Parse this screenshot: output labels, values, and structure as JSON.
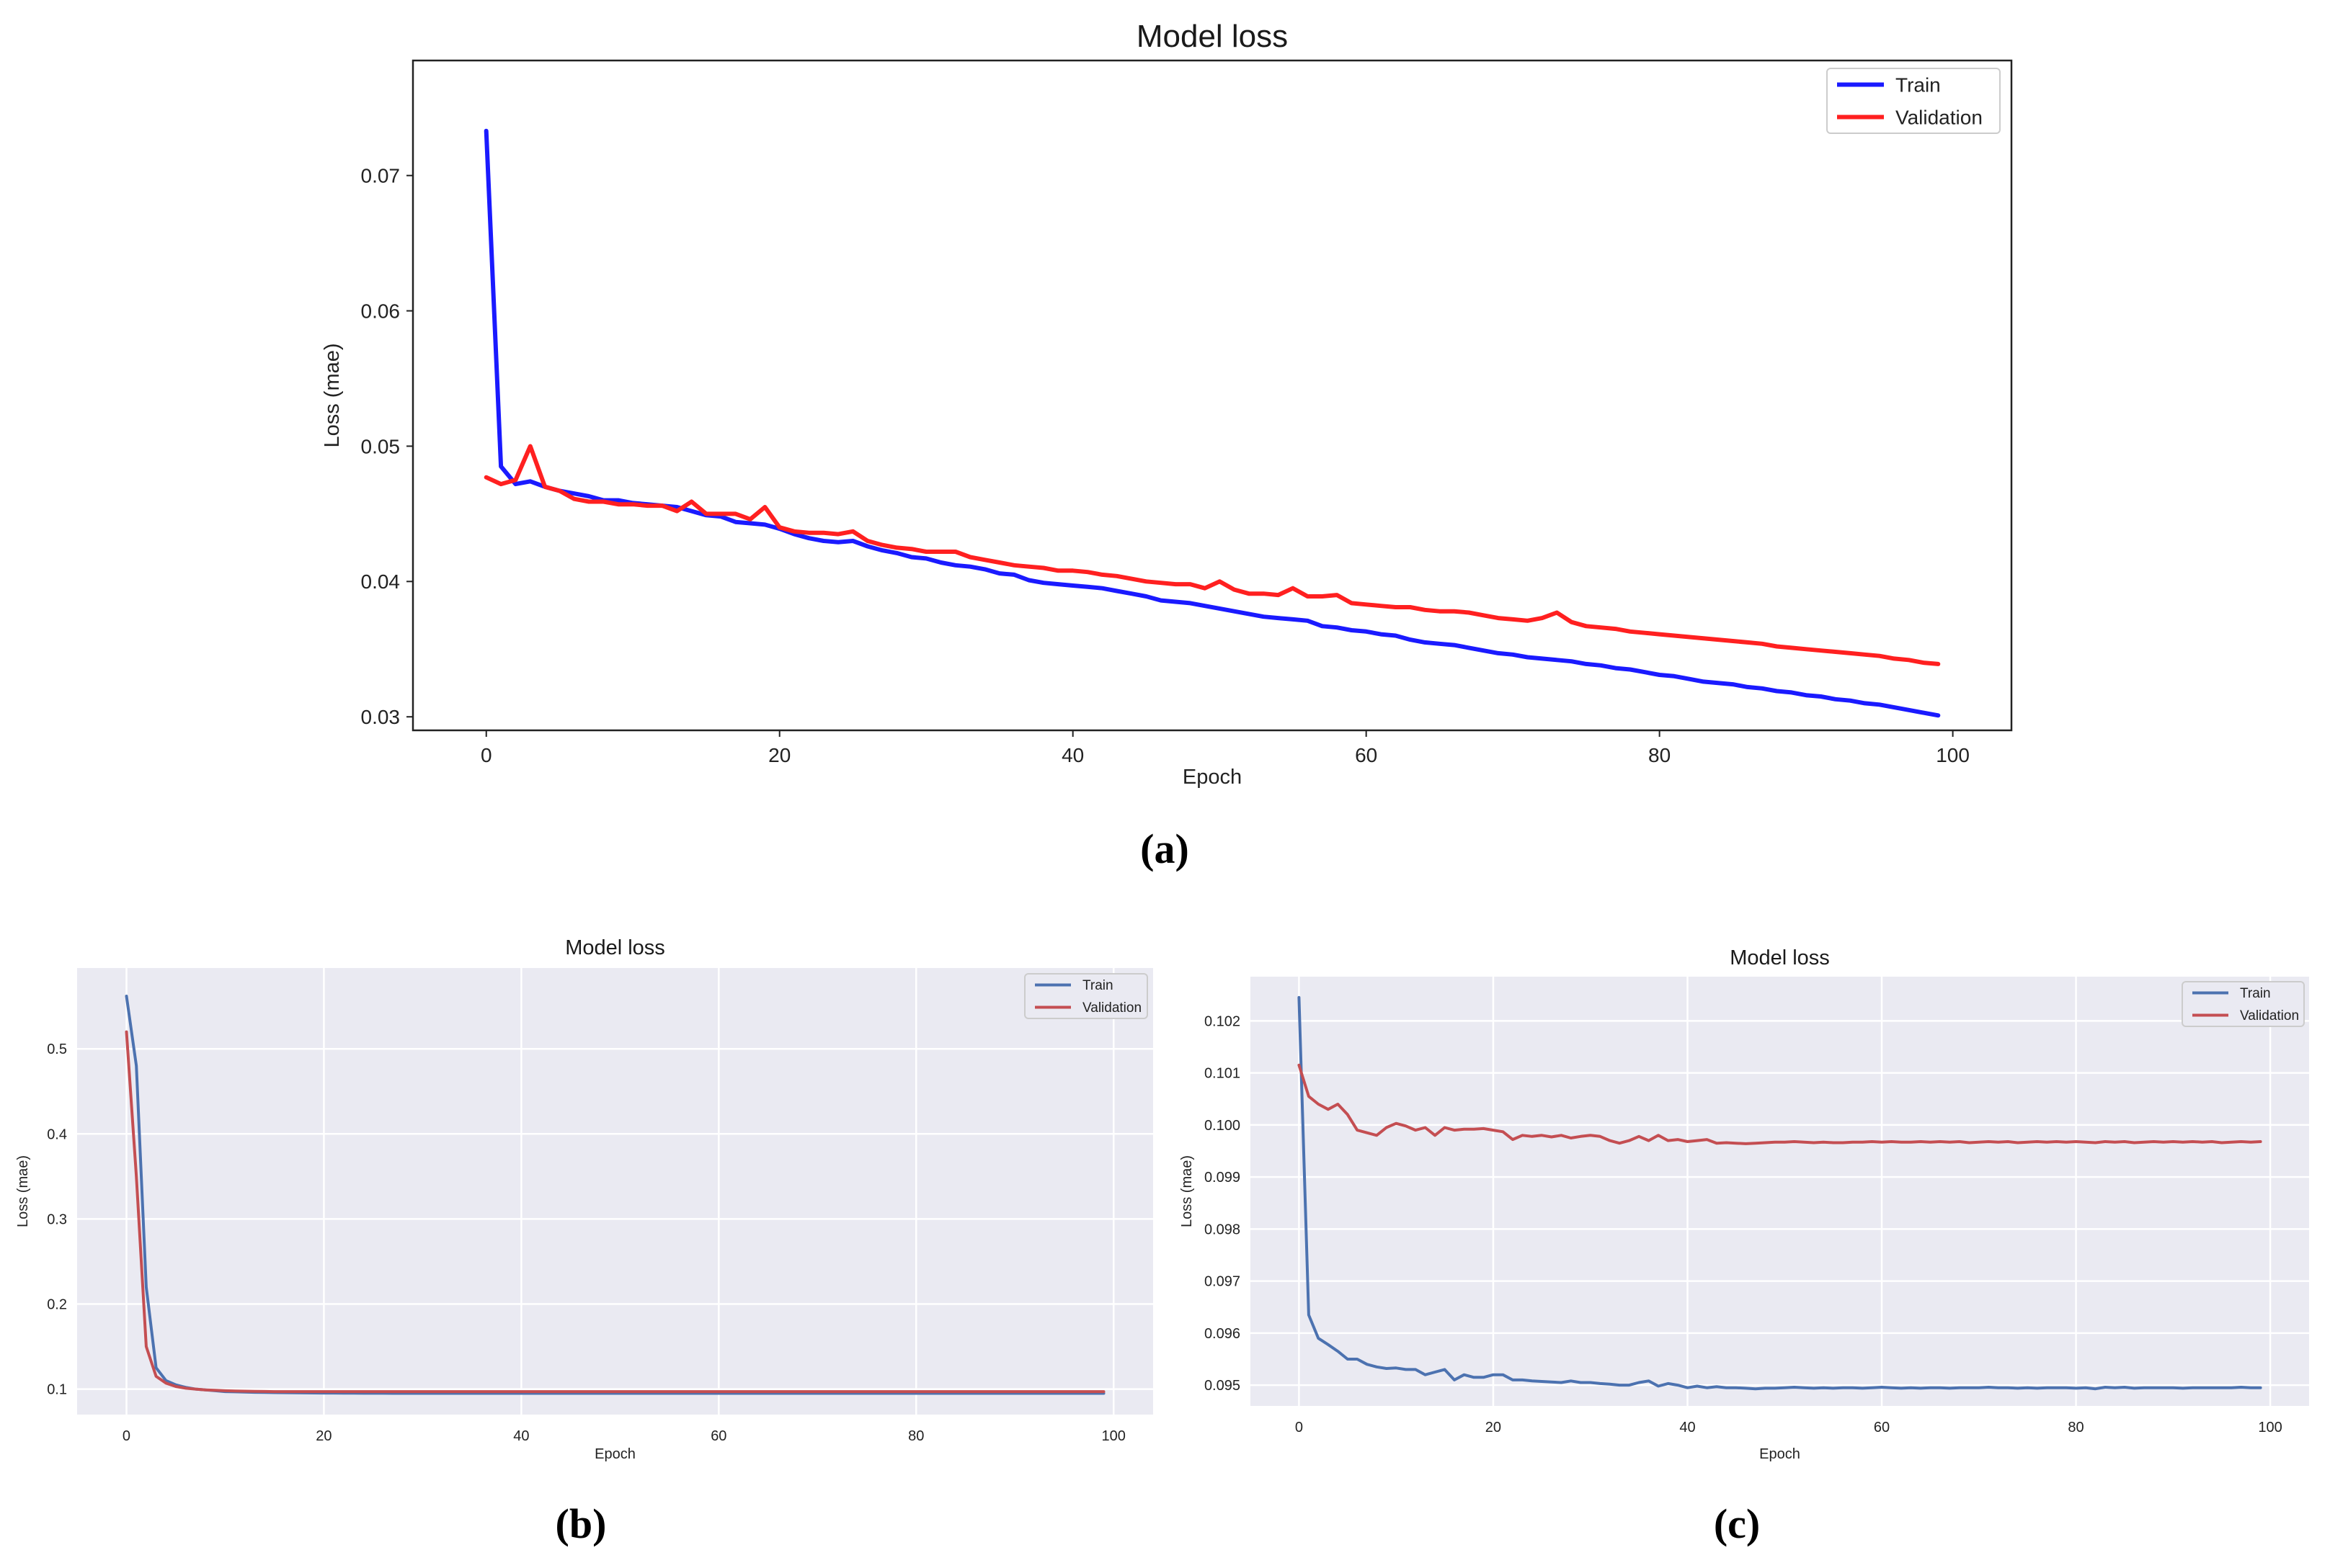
{
  "chart_data": [
    {
      "id": "a",
      "type": "line",
      "style": "classic",
      "title": "Model loss",
      "xlabel": "Epoch",
      "ylabel": "Loss (mae)",
      "xlim": [
        -5,
        104
      ],
      "ylim": [
        0.029,
        0.0785
      ],
      "xticks": [
        0,
        20,
        40,
        60,
        80,
        100
      ],
      "yticks": [
        0.03,
        0.04,
        0.05,
        0.06,
        0.07
      ],
      "ytick_labels": [
        "0.03",
        "0.04",
        "0.05",
        "0.06",
        "0.07"
      ],
      "legend": [
        "Train",
        "Validation"
      ],
      "legend_position": "top-right",
      "caption": "(a)",
      "series": [
        {
          "name": "Train",
          "color": "#1a1aff",
          "values": [
            0.0733,
            0.0485,
            0.0472,
            0.0474,
            0.047,
            0.0467,
            0.0465,
            0.0463,
            0.046,
            0.046,
            0.0458,
            0.0457,
            0.0456,
            0.0455,
            0.0452,
            0.0449,
            0.0448,
            0.0444,
            0.0443,
            0.0442,
            0.0439,
            0.0435,
            0.0432,
            0.043,
            0.0429,
            0.043,
            0.0426,
            0.0423,
            0.0421,
            0.0418,
            0.0417,
            0.0414,
            0.0412,
            0.0411,
            0.0409,
            0.0406,
            0.0405,
            0.0401,
            0.0399,
            0.0398,
            0.0397,
            0.0396,
            0.0395,
            0.0393,
            0.0391,
            0.0389,
            0.0386,
            0.0385,
            0.0384,
            0.0382,
            0.038,
            0.0378,
            0.0376,
            0.0374,
            0.0373,
            0.0372,
            0.0371,
            0.0367,
            0.0366,
            0.0364,
            0.0363,
            0.0361,
            0.036,
            0.0357,
            0.0355,
            0.0354,
            0.0353,
            0.0351,
            0.0349,
            0.0347,
            0.0346,
            0.0344,
            0.0343,
            0.0342,
            0.0341,
            0.0339,
            0.0338,
            0.0336,
            0.0335,
            0.0333,
            0.0331,
            0.033,
            0.0328,
            0.0326,
            0.0325,
            0.0324,
            0.0322,
            0.0321,
            0.0319,
            0.0318,
            0.0316,
            0.0315,
            0.0313,
            0.0312,
            0.031,
            0.0309,
            0.0307,
            0.0305,
            0.0303,
            0.0301
          ]
        },
        {
          "name": "Validation",
          "color": "#ff2020",
          "values": [
            0.0477,
            0.0472,
            0.0475,
            0.05,
            0.047,
            0.0467,
            0.0461,
            0.0459,
            0.0459,
            0.0457,
            0.0457,
            0.0456,
            0.0456,
            0.0452,
            0.0459,
            0.045,
            0.045,
            0.045,
            0.0446,
            0.0455,
            0.044,
            0.0437,
            0.0436,
            0.0436,
            0.0435,
            0.0437,
            0.043,
            0.0427,
            0.0425,
            0.0424,
            0.0422,
            0.0422,
            0.0422,
            0.0418,
            0.0416,
            0.0414,
            0.0412,
            0.0411,
            0.041,
            0.0408,
            0.0408,
            0.0407,
            0.0405,
            0.0404,
            0.0402,
            0.04,
            0.0399,
            0.0398,
            0.0398,
            0.0395,
            0.04,
            0.0394,
            0.0391,
            0.0391,
            0.039,
            0.0395,
            0.0389,
            0.0389,
            0.039,
            0.0384,
            0.0383,
            0.0382,
            0.0381,
            0.0381,
            0.0379,
            0.0378,
            0.0378,
            0.0377,
            0.0375,
            0.0373,
            0.0372,
            0.0371,
            0.0373,
            0.0377,
            0.037,
            0.0367,
            0.0366,
            0.0365,
            0.0363,
            0.0362,
            0.0361,
            0.036,
            0.0359,
            0.0358,
            0.0357,
            0.0356,
            0.0355,
            0.0354,
            0.0352,
            0.0351,
            0.035,
            0.0349,
            0.0348,
            0.0347,
            0.0346,
            0.0345,
            0.0343,
            0.0342,
            0.034,
            0.0339
          ]
        }
      ]
    },
    {
      "id": "b",
      "type": "line",
      "style": "seaborn",
      "title": "Model loss",
      "xlabel": "Epoch",
      "ylabel": "Loss (mae)",
      "xlim": [
        -5,
        104
      ],
      "ylim": [
        0.07,
        0.595
      ],
      "xticks": [
        0,
        20,
        40,
        60,
        80,
        100
      ],
      "yticks": [
        0.1,
        0.2,
        0.3,
        0.4,
        0.5
      ],
      "ytick_labels": [
        "0.1",
        "0.2",
        "0.3",
        "0.4",
        "0.5"
      ],
      "legend": [
        "Train",
        "Validation"
      ],
      "legend_position": "top-right",
      "caption": "(b)",
      "series": [
        {
          "name": "Train",
          "color": "#4c72b0",
          "values": [
            0.562,
            0.48,
            0.22,
            0.125,
            0.11,
            0.105,
            0.102,
            0.1,
            0.099,
            0.098,
            0.097,
            0.0968,
            0.0965,
            0.0962,
            0.096,
            0.0958,
            0.0957,
            0.0956,
            0.0955,
            0.0954,
            0.0953,
            0.0953,
            0.0952,
            0.0952,
            0.0951,
            0.0951,
            0.0951,
            0.095,
            0.095,
            0.095,
            0.095,
            0.095,
            0.095,
            0.095,
            0.095,
            0.095,
            0.095,
            0.095,
            0.095,
            0.095,
            0.095,
            0.095,
            0.095,
            0.095,
            0.095,
            0.095,
            0.095,
            0.095,
            0.095,
            0.095,
            0.095,
            0.095,
            0.095,
            0.095,
            0.095,
            0.095,
            0.095,
            0.095,
            0.095,
            0.095,
            0.095,
            0.095,
            0.095,
            0.095,
            0.095,
            0.095,
            0.095,
            0.095,
            0.095,
            0.095,
            0.095,
            0.095,
            0.095,
            0.095,
            0.095,
            0.095,
            0.095,
            0.095,
            0.095,
            0.095,
            0.095,
            0.095,
            0.095,
            0.095,
            0.095,
            0.095,
            0.095,
            0.095,
            0.095,
            0.095,
            0.095,
            0.095,
            0.095,
            0.095,
            0.095,
            0.095,
            0.095,
            0.095,
            0.095,
            0.095
          ]
        },
        {
          "name": "Validation",
          "color": "#c44e52",
          "values": [
            0.52,
            0.35,
            0.15,
            0.115,
            0.107,
            0.103,
            0.101,
            0.1,
            0.099,
            0.0985,
            0.098,
            0.0978,
            0.0975,
            0.0973,
            0.0972,
            0.097,
            0.097,
            0.097,
            0.097,
            0.097,
            0.097,
            0.097,
            0.097,
            0.097,
            0.097,
            0.097,
            0.097,
            0.097,
            0.097,
            0.097,
            0.097,
            0.097,
            0.097,
            0.097,
            0.097,
            0.097,
            0.097,
            0.097,
            0.097,
            0.097,
            0.097,
            0.097,
            0.097,
            0.097,
            0.097,
            0.097,
            0.097,
            0.097,
            0.097,
            0.097,
            0.097,
            0.097,
            0.097,
            0.097,
            0.097,
            0.097,
            0.097,
            0.097,
            0.097,
            0.097,
            0.097,
            0.097,
            0.097,
            0.097,
            0.097,
            0.097,
            0.097,
            0.097,
            0.097,
            0.097,
            0.097,
            0.097,
            0.097,
            0.097,
            0.097,
            0.097,
            0.097,
            0.097,
            0.097,
            0.097,
            0.097,
            0.097,
            0.097,
            0.097,
            0.097,
            0.097,
            0.097,
            0.097,
            0.097,
            0.097,
            0.097,
            0.097,
            0.097,
            0.097,
            0.097,
            0.097,
            0.097,
            0.097,
            0.097,
            0.097
          ]
        }
      ]
    },
    {
      "id": "c",
      "type": "line",
      "style": "seaborn",
      "title": "Model loss",
      "xlabel": "Epoch",
      "ylabel": "Loss (mae)",
      "xlim": [
        -5,
        104
      ],
      "ylim": [
        0.0946,
        0.10285
      ],
      "xticks": [
        0,
        20,
        40,
        60,
        80,
        100
      ],
      "yticks": [
        0.095,
        0.096,
        0.097,
        0.098,
        0.099,
        0.1,
        0.101,
        0.102
      ],
      "ytick_labels": [
        "0.095",
        "0.096",
        "0.097",
        "0.098",
        "0.099",
        "0.100",
        "0.101",
        "0.102"
      ],
      "legend": [
        "Train",
        "Validation"
      ],
      "legend_position": "top-right",
      "caption": "(c)",
      "series": [
        {
          "name": "Train",
          "color": "#4c72b0",
          "values": [
            0.10245,
            0.09635,
            0.0959,
            0.09578,
            0.09565,
            0.0955,
            0.0955,
            0.0954,
            0.09535,
            0.09532,
            0.09533,
            0.0953,
            0.0953,
            0.0952,
            0.09525,
            0.0953,
            0.0951,
            0.0952,
            0.09515,
            0.09515,
            0.0952,
            0.0952,
            0.0951,
            0.0951,
            0.09508,
            0.09507,
            0.09506,
            0.09505,
            0.09508,
            0.09505,
            0.09505,
            0.09503,
            0.09502,
            0.095,
            0.095,
            0.09505,
            0.09508,
            0.09498,
            0.09503,
            0.095,
            0.09495,
            0.09498,
            0.09495,
            0.09497,
            0.09495,
            0.09495,
            0.09494,
            0.09493,
            0.09494,
            0.09494,
            0.09495,
            0.09496,
            0.09495,
            0.09494,
            0.09495,
            0.09494,
            0.09495,
            0.09495,
            0.09494,
            0.09495,
            0.09496,
            0.09495,
            0.09494,
            0.09495,
            0.09494,
            0.09495,
            0.09495,
            0.09494,
            0.09495,
            0.09495,
            0.09495,
            0.09496,
            0.09495,
            0.09495,
            0.09494,
            0.09495,
            0.09494,
            0.09495,
            0.09495,
            0.09495,
            0.09494,
            0.09495,
            0.09493,
            0.09496,
            0.09495,
            0.09496,
            0.09494,
            0.09495,
            0.09495,
            0.09495,
            0.09495,
            0.09494,
            0.09495,
            0.09495,
            0.09495,
            0.09495,
            0.09495,
            0.09496,
            0.09495,
            0.09495
          ]
        },
        {
          "name": "Validation",
          "color": "#c44e52",
          "values": [
            0.10115,
            0.10055,
            0.1004,
            0.1003,
            0.1004,
            0.1002,
            0.0999,
            0.09985,
            0.0998,
            0.09995,
            0.10003,
            0.09998,
            0.0999,
            0.09995,
            0.0998,
            0.09995,
            0.0999,
            0.09992,
            0.09992,
            0.09993,
            0.0999,
            0.09987,
            0.09972,
            0.0998,
            0.09978,
            0.0998,
            0.09977,
            0.0998,
            0.09975,
            0.09978,
            0.0998,
            0.09978,
            0.0997,
            0.09965,
            0.0997,
            0.09978,
            0.0997,
            0.0998,
            0.0997,
            0.09972,
            0.09968,
            0.0997,
            0.09972,
            0.09965,
            0.09966,
            0.09965,
            0.09964,
            0.09965,
            0.09966,
            0.09967,
            0.09967,
            0.09968,
            0.09967,
            0.09966,
            0.09967,
            0.09966,
            0.09966,
            0.09967,
            0.09967,
            0.09968,
            0.09967,
            0.09968,
            0.09967,
            0.09967,
            0.09968,
            0.09967,
            0.09968,
            0.09967,
            0.09968,
            0.09966,
            0.09967,
            0.09968,
            0.09967,
            0.09968,
            0.09966,
            0.09967,
            0.09968,
            0.09967,
            0.09968,
            0.09967,
            0.09968,
            0.09967,
            0.09966,
            0.09968,
            0.09967,
            0.09968,
            0.09966,
            0.09967,
            0.09968,
            0.09967,
            0.09968,
            0.09967,
            0.09968,
            0.09967,
            0.09968,
            0.09966,
            0.09967,
            0.09968,
            0.09967,
            0.09968
          ]
        }
      ]
    }
  ]
}
